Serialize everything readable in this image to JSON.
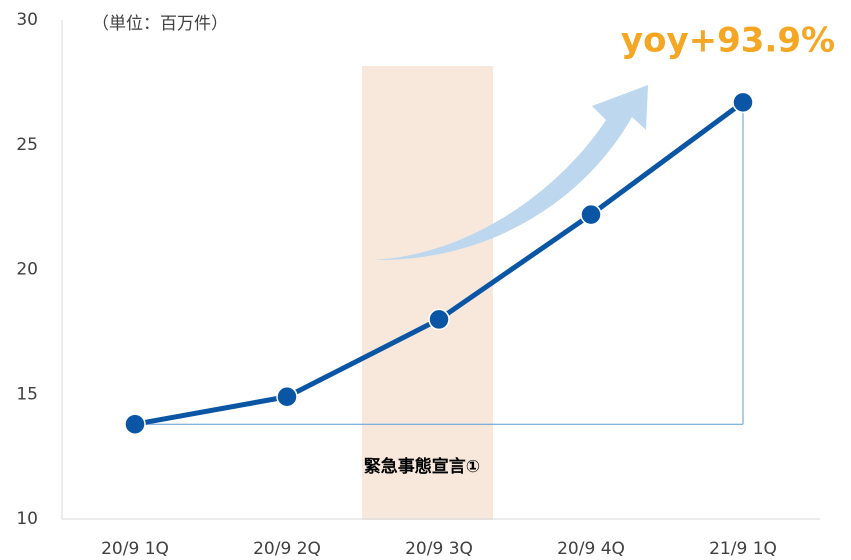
{
  "chart_data": {
    "type": "line",
    "title": "yoy+93.9%",
    "unit_label": "（単位：百万件）",
    "annotation": "緊急事態宣言①",
    "categories": [
      "20/9 1Q",
      "20/9 2Q",
      "20/9 3Q",
      "20/9 4Q",
      "21/9 1Q"
    ],
    "values": [
      13.8,
      14.9,
      18.0,
      22.2,
      26.7
    ],
    "color": "#0a56a5",
    "ylim": [
      10,
      30
    ],
    "yticks": [
      10,
      15,
      20,
      25,
      30
    ],
    "grid": false
  }
}
